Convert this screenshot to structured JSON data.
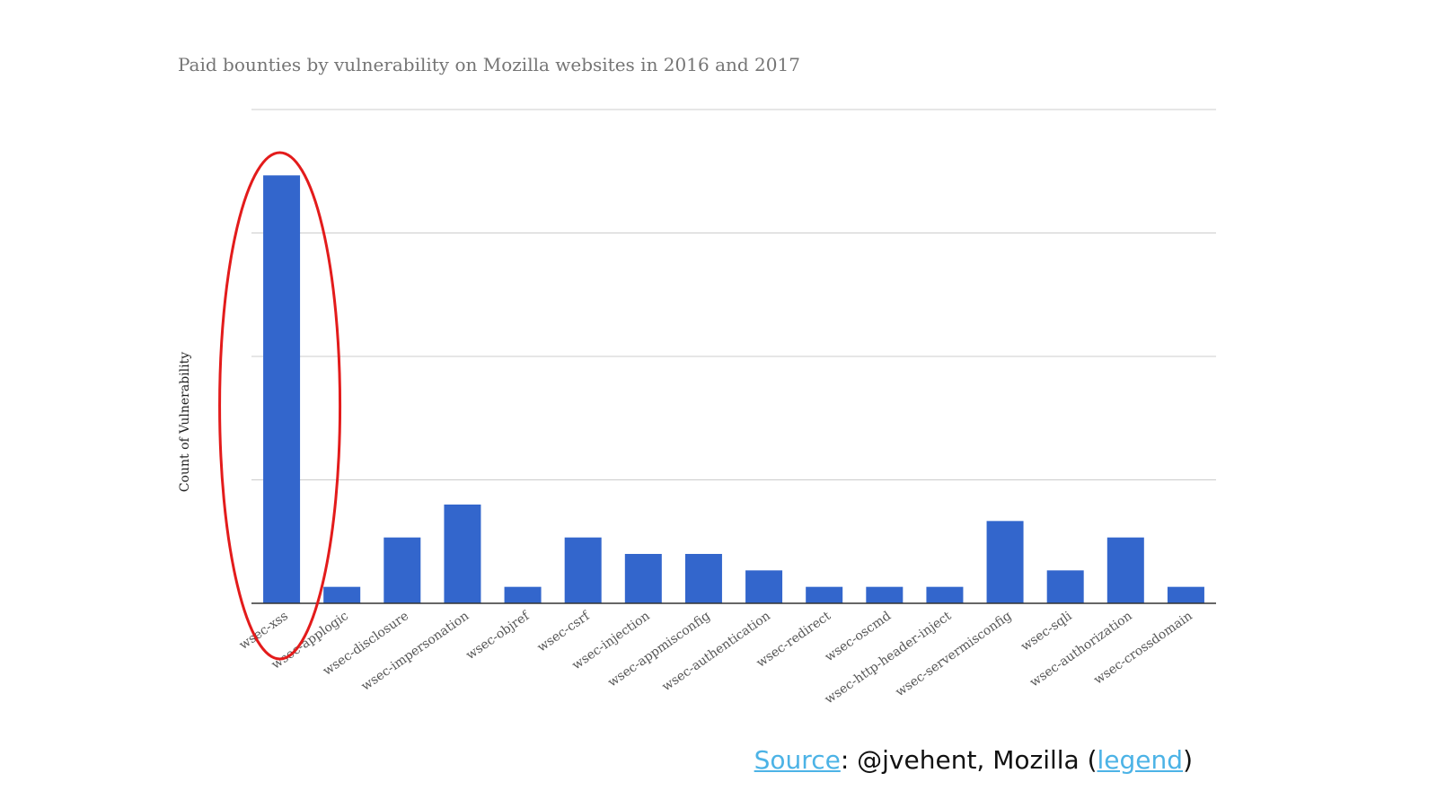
{
  "slide": {
    "source_link": "Source",
    "source_mid": ": @jvehent, Mozilla (",
    "legend_link": "legend",
    "source_end": ")"
  },
  "chart_data": {
    "type": "bar",
    "title": "Paid bounties by vulnerability on Mozilla websites in 2016 and 2017",
    "ylabel": "Count of Vulnerability",
    "xlabel": "",
    "ylim": [
      0,
      30
    ],
    "grid": true,
    "bar_color": "#3366cc",
    "highlight_color": "#e31b1b",
    "highlighted_category": "wsec-xss",
    "categories": [
      "wsec-xss",
      "wsec-applogic",
      "wsec-disclosure",
      "wsec-impersonation",
      "wsec-objref",
      "wsec-csrf",
      "wsec-injection",
      "wsec-appmisconfig",
      "wsec-authentication",
      "wsec-redirect",
      "wsec-oscmd",
      "wsec-http-header-inject",
      "wsec-servermisconfig",
      "wsec-sqli",
      "wsec-authorization",
      "wsec-crossdomain"
    ],
    "values": [
      26,
      1,
      4,
      6,
      1,
      4,
      3,
      3,
      2,
      1,
      1,
      1,
      5,
      2,
      4,
      1
    ]
  }
}
